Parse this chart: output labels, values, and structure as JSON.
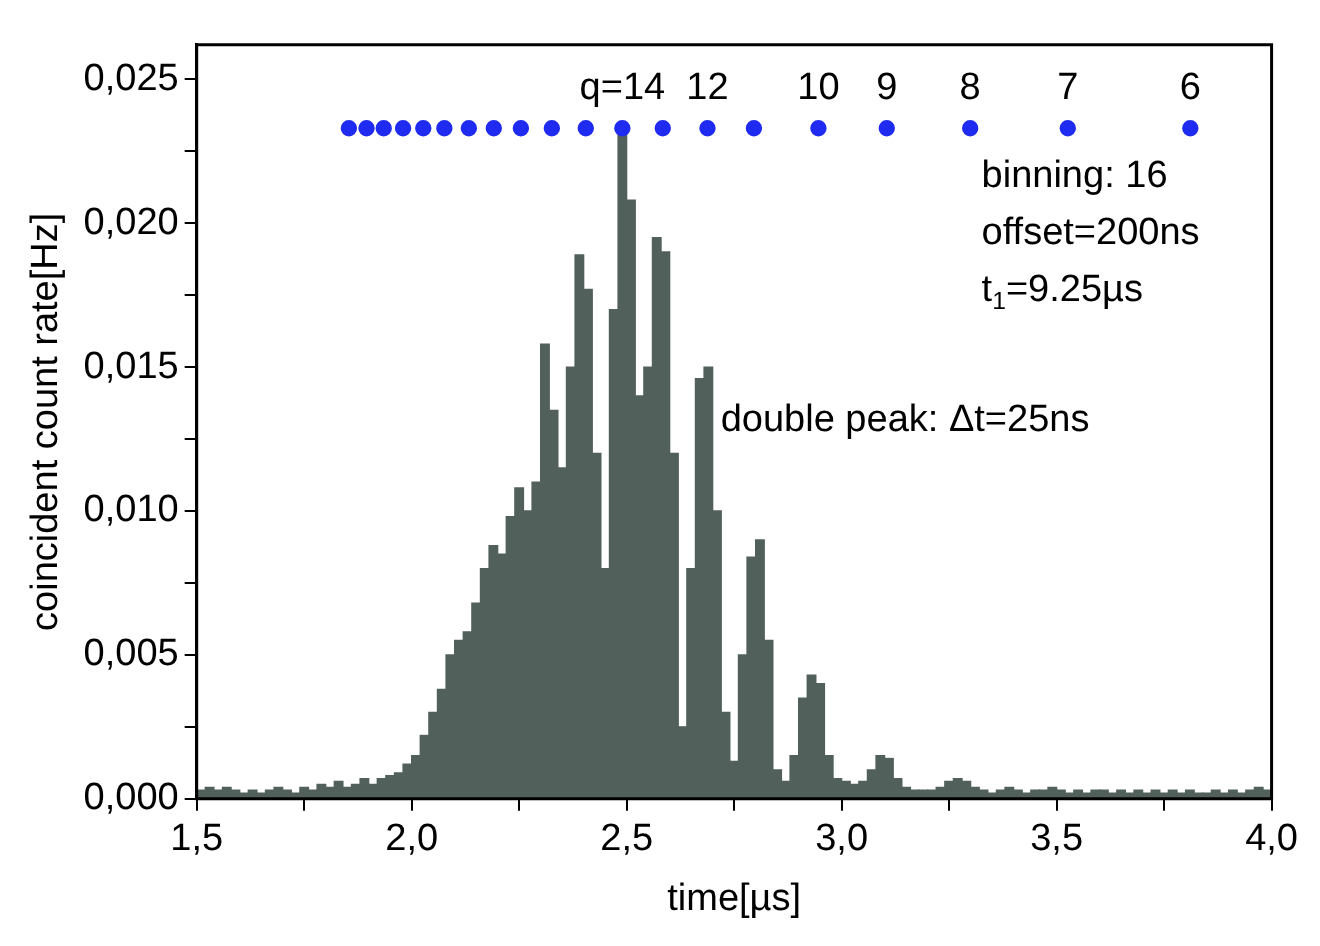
{
  "chart_data": {
    "type": "histogram",
    "xlabel": "time[µs]",
    "ylabel": "coincident count rate[Hz]",
    "xlim": [
      1.5,
      4.0
    ],
    "ylim": [
      0,
      0.0262
    ],
    "xticks": [
      {
        "value": 1.5,
        "label": "1,5"
      },
      {
        "value": 1.75,
        "label": null
      },
      {
        "value": 2.0,
        "label": "2,0"
      },
      {
        "value": 2.25,
        "label": null
      },
      {
        "value": 2.5,
        "label": "2,5"
      },
      {
        "value": 2.75,
        "label": null
      },
      {
        "value": 3.0,
        "label": "3,0"
      },
      {
        "value": 3.25,
        "label": null
      },
      {
        "value": 3.5,
        "label": "3,5"
      },
      {
        "value": 3.75,
        "label": null
      },
      {
        "value": 4.0,
        "label": "4,0"
      }
    ],
    "yticks": [
      {
        "value": 0,
        "label": "0,000"
      },
      {
        "value": 0.0025,
        "label": null
      },
      {
        "value": 0.005,
        "label": "0,005"
      },
      {
        "value": 0.0075,
        "label": null
      },
      {
        "value": 0.01,
        "label": "0,010"
      },
      {
        "value": 0.0125,
        "label": null
      },
      {
        "value": 0.015,
        "label": "0,015"
      },
      {
        "value": 0.0175,
        "label": null
      },
      {
        "value": 0.02,
        "label": "0,020"
      },
      {
        "value": 0.0225,
        "label": null
      },
      {
        "value": 0.025,
        "label": "0,025"
      }
    ],
    "grid": false,
    "legend": false,
    "series": [
      {
        "color": "#52605c",
        "bins": [
          1.5,
          1.52,
          1.54,
          1.56,
          1.58,
          1.6,
          1.62,
          1.64,
          1.66,
          1.68,
          1.7,
          1.72,
          1.74,
          1.76,
          1.78,
          1.8,
          1.82,
          1.84,
          1.86,
          1.88,
          1.9,
          1.92,
          1.94,
          1.96,
          1.98,
          2.0,
          2.02,
          2.04,
          2.06,
          2.08,
          2.1,
          2.12,
          2.14,
          2.16,
          2.18,
          2.2,
          2.22,
          2.24,
          2.26,
          2.28,
          2.3,
          2.32,
          2.34,
          2.36,
          2.38,
          2.4,
          2.42,
          2.44,
          2.46,
          2.48,
          2.5,
          2.52,
          2.54,
          2.56,
          2.58,
          2.6,
          2.62,
          2.64,
          2.66,
          2.68,
          2.7,
          2.72,
          2.74,
          2.76,
          2.78,
          2.8,
          2.82,
          2.84,
          2.86,
          2.88,
          2.9,
          2.92,
          2.94,
          2.96,
          2.98,
          3.0,
          3.02,
          3.04,
          3.06,
          3.08,
          3.1,
          3.12,
          3.14,
          3.16,
          3.18,
          3.2,
          3.22,
          3.24,
          3.26,
          3.28,
          3.3,
          3.32,
          3.34,
          3.36,
          3.38,
          3.4,
          3.42,
          3.44,
          3.46,
          3.48,
          3.5,
          3.52,
          3.54,
          3.56,
          3.58,
          3.6,
          3.62,
          3.64,
          3.66,
          3.68,
          3.7,
          3.72,
          3.74,
          3.76,
          3.78,
          3.8,
          3.82,
          3.84,
          3.86,
          3.88,
          3.9,
          3.92,
          3.94,
          3.96,
          3.98,
          4.0
        ],
        "values": [
          0.0003,
          0.0004,
          0.0003,
          0.0004,
          0.0003,
          0.0002,
          0.0003,
          0.0002,
          0.0003,
          0.0004,
          0.0003,
          0.0002,
          0.0004,
          0.0003,
          0.0005,
          0.0004,
          0.0006,
          0.0004,
          0.0005,
          0.0007,
          0.0005,
          0.0007,
          0.0008,
          0.0009,
          0.0012,
          0.0015,
          0.0022,
          0.003,
          0.0038,
          0.005,
          0.0055,
          0.0058,
          0.0068,
          0.008,
          0.0088,
          0.0085,
          0.0098,
          0.0108,
          0.01,
          0.011,
          0.0158,
          0.0135,
          0.0115,
          0.015,
          0.0189,
          0.0177,
          0.012,
          0.008,
          0.017,
          0.0233,
          0.0208,
          0.014,
          0.015,
          0.0195,
          0.019,
          0.012,
          0.0025,
          0.008,
          0.0146,
          0.015,
          0.01,
          0.003,
          0.0013,
          0.005,
          0.0084,
          0.009,
          0.0055,
          0.001,
          0.0006,
          0.0015,
          0.0035,
          0.0043,
          0.004,
          0.0015,
          0.0007,
          0.0006,
          0.0005,
          0.0006,
          0.001,
          0.0015,
          0.0014,
          0.0007,
          0.0004,
          0.0003,
          0.0003,
          0.0003,
          0.0004,
          0.0006,
          0.0007,
          0.0006,
          0.0004,
          0.0003,
          0.0002,
          0.0003,
          0.0004,
          0.0003,
          0.0002,
          0.0003,
          0.0003,
          0.0004,
          0.0003,
          0.0002,
          0.0003,
          0.0002,
          0.0003,
          0.0003,
          0.0002,
          0.0003,
          0.0002,
          0.0003,
          0.0002,
          0.0003,
          0.0002,
          0.0003,
          0.0002,
          0.0003,
          0.0002,
          0.0002,
          0.0003,
          0.0002,
          0.0003,
          0.0002,
          0.0003,
          0.0004,
          0.0003
        ]
      },
      {
        "type": "scatter",
        "color": "#1f2bf0",
        "marker": "circle",
        "x": [
          1.854,
          1.895,
          1.935,
          1.98,
          2.027,
          2.076,
          2.133,
          2.191,
          2.254,
          2.326,
          2.405,
          2.49,
          2.584,
          2.688,
          2.796,
          2.946,
          3.105,
          3.299,
          3.526,
          3.811
        ],
        "values": [
          0.0233,
          0.0233,
          0.0233,
          0.0233,
          0.0233,
          0.0233,
          0.0233,
          0.0233,
          0.0233,
          0.0233,
          0.0233,
          0.0233,
          0.0233,
          0.0233,
          0.0233,
          0.0233,
          0.0233,
          0.0233,
          0.0233,
          0.0233
        ]
      }
    ],
    "annotations": [
      "q=14",
      "12",
      "10",
      "9",
      "8",
      "7",
      "6",
      "binning: 16",
      "offset=200ns",
      "t$_{1}$=9.25µs",
      "double peak: Δt=25ns"
    ]
  }
}
